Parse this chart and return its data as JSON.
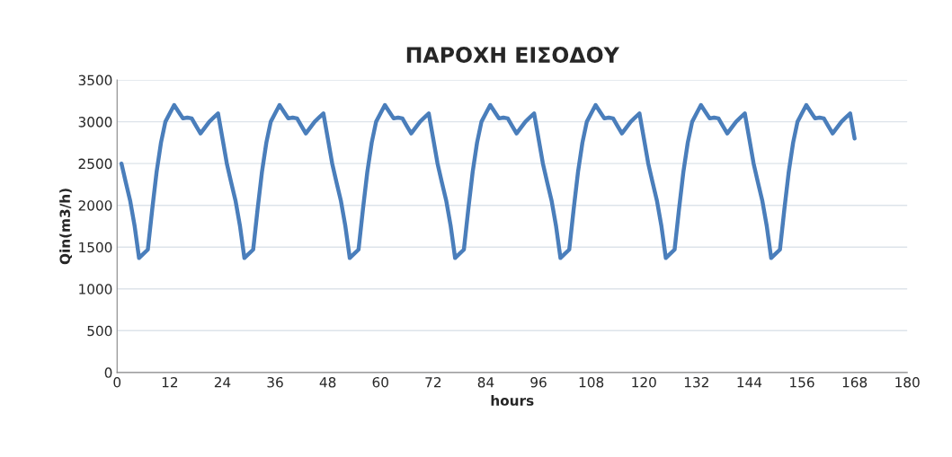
{
  "chart_data": {
    "type": "line",
    "title": "ΠΑΡΟΧΗ ΕΙΣΟΔΟΥ",
    "xlabel": "hours",
    "ylabel": "Qin(m3/h)",
    "x": [
      1,
      2,
      3,
      4,
      5,
      6,
      7,
      8,
      9,
      10,
      11,
      12,
      13,
      14,
      15,
      16,
      17,
      18,
      19,
      20,
      21,
      22,
      23,
      24,
      25,
      26,
      27,
      28,
      29,
      30,
      31,
      32,
      33,
      34,
      35,
      36,
      37,
      38,
      39,
      40,
      41,
      42,
      43,
      44,
      45,
      46,
      47,
      48,
      49,
      50,
      51,
      52,
      53,
      54,
      55,
      56,
      57,
      58,
      59,
      60,
      61,
      62,
      63,
      64,
      65,
      66,
      67,
      68,
      69,
      70,
      71,
      72,
      73,
      74,
      75,
      76,
      77,
      78,
      79,
      80,
      81,
      82,
      83,
      84,
      85,
      86,
      87,
      88,
      89,
      90,
      91,
      92,
      93,
      94,
      95,
      96,
      97,
      98,
      99,
      100,
      101,
      102,
      103,
      104,
      105,
      106,
      107,
      108,
      109,
      110,
      111,
      112,
      113,
      114,
      115,
      116,
      117,
      118,
      119,
      120,
      121,
      122,
      123,
      124,
      125,
      126,
      127,
      128,
      129,
      130,
      131,
      132,
      133,
      134,
      135,
      136,
      137,
      138,
      139,
      140,
      141,
      142,
      143,
      144,
      145,
      146,
      147,
      148,
      149,
      150,
      151,
      152,
      153,
      154,
      155,
      156,
      157,
      158,
      159,
      160,
      161,
      162,
      163,
      164,
      165,
      166,
      167,
      168
    ],
    "series": [
      {
        "color": "#4a7ebb",
        "values": [
          2500,
          2270,
          2050,
          1750,
          1370,
          1420,
          1470,
          1950,
          2400,
          2750,
          3000,
          3100,
          3200,
          3120,
          3040,
          3050,
          3040,
          2950,
          2860,
          2930,
          3000,
          3050,
          3100,
          2800,
          2500,
          2270,
          2050,
          1750,
          1370,
          1420,
          1470,
          1950,
          2400,
          2750,
          3000,
          3100,
          3200,
          3120,
          3040,
          3050,
          3040,
          2950,
          2860,
          2930,
          3000,
          3050,
          3100,
          2800,
          2500,
          2270,
          2050,
          1750,
          1370,
          1420,
          1470,
          1950,
          2400,
          2750,
          3000,
          3100,
          3200,
          3120,
          3040,
          3050,
          3040,
          2950,
          2860,
          2930,
          3000,
          3050,
          3100,
          2800,
          2500,
          2270,
          2050,
          1750,
          1370,
          1420,
          1470,
          1950,
          2400,
          2750,
          3000,
          3100,
          3200,
          3120,
          3040,
          3050,
          3040,
          2950,
          2860,
          2930,
          3000,
          3050,
          3100,
          2800,
          2500,
          2270,
          2050,
          1750,
          1370,
          1420,
          1470,
          1950,
          2400,
          2750,
          3000,
          3100,
          3200,
          3120,
          3040,
          3050,
          3040,
          2950,
          2860,
          2930,
          3000,
          3050,
          3100,
          2800,
          2500,
          2270,
          2050,
          1750,
          1370,
          1420,
          1470,
          1950,
          2400,
          2750,
          3000,
          3100,
          3200,
          3120,
          3040,
          3050,
          3040,
          2950,
          2860,
          2930,
          3000,
          3050,
          3100,
          2800,
          2500,
          2270,
          2050,
          1750,
          1370,
          1420,
          1470,
          1950,
          2400,
          2750,
          3000,
          3100,
          3200,
          3120,
          3040,
          3050,
          3040,
          2950,
          2860,
          2930,
          3000,
          3050,
          3100,
          2800
        ]
      }
    ],
    "xlim": [
      0,
      180
    ],
    "xticks": [
      0,
      12,
      24,
      36,
      48,
      60,
      72,
      84,
      96,
      108,
      120,
      132,
      144,
      156,
      168,
      180
    ],
    "ylim": [
      0,
      3500
    ],
    "yticks": [
      0,
      500,
      1000,
      1500,
      2000,
      2500,
      3000,
      3500
    ],
    "grid": "y",
    "marker": "none",
    "line_style": "solid"
  }
}
